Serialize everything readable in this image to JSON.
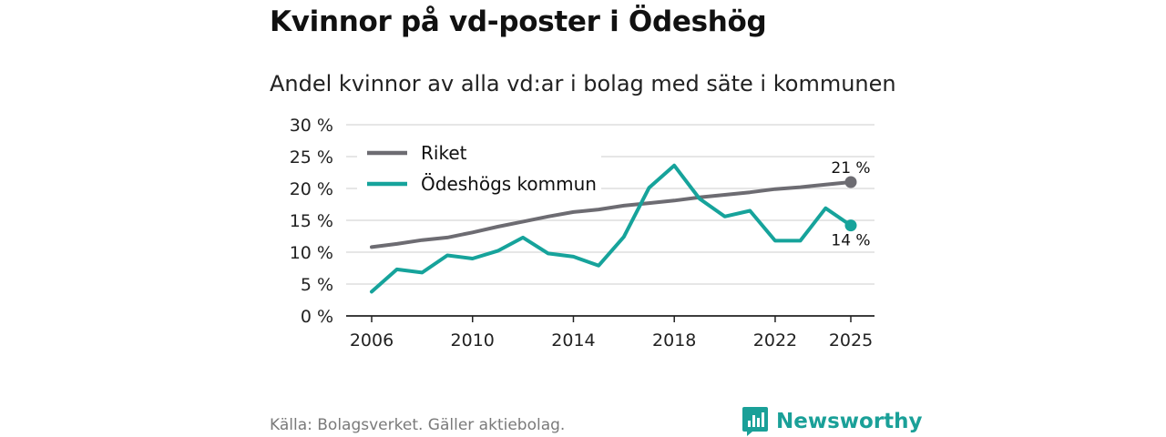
{
  "title": "Kvinnor på vd-poster i Ödeshög",
  "subtitle": "Andel kvinnor av alla vd:ar i bolag med säte i kommunen",
  "source": "Källa: Bolagsverket. Gäller aktiebolag.",
  "brand": "Newsworthy",
  "colors": {
    "riket": "#6d6c72",
    "kommun": "#16a39b",
    "grid": "#dddddd",
    "brand": "#1aa098"
  },
  "chart_data": {
    "type": "line",
    "x": [
      2006,
      2007,
      2008,
      2009,
      2010,
      2011,
      2012,
      2013,
      2014,
      2015,
      2016,
      2017,
      2018,
      2019,
      2020,
      2021,
      2022,
      2023,
      2024,
      2025
    ],
    "series": [
      {
        "name": "Riket",
        "values": [
          10.8,
          11.3,
          11.9,
          12.3,
          13.1,
          14.0,
          14.8,
          15.6,
          16.3,
          16.7,
          17.3,
          17.7,
          18.1,
          18.6,
          19.0,
          19.4,
          19.9,
          20.2,
          20.6,
          21.0
        ],
        "end_label": "21 %"
      },
      {
        "name": "Ödeshögs kommun",
        "values": [
          3.8,
          7.3,
          6.8,
          9.5,
          9.0,
          10.2,
          12.3,
          9.8,
          9.3,
          7.9,
          12.4,
          20.1,
          23.6,
          18.4,
          15.6,
          16.5,
          11.8,
          11.8,
          16.9,
          14.2
        ],
        "end_label": "14 %"
      }
    ],
    "yticks": [
      "0 %",
      "5 %",
      "10 %",
      "15 %",
      "20 %",
      "25 %",
      "30 %"
    ],
    "ytick_values": [
      0,
      5,
      10,
      15,
      20,
      25,
      30
    ],
    "xticks": [
      2006,
      2010,
      2014,
      2018,
      2022,
      2025
    ],
    "ylim": [
      0,
      30
    ],
    "legend": [
      "Riket",
      "Ödeshögs kommun"
    ],
    "legend_position": "top-left",
    "grid": true
  }
}
